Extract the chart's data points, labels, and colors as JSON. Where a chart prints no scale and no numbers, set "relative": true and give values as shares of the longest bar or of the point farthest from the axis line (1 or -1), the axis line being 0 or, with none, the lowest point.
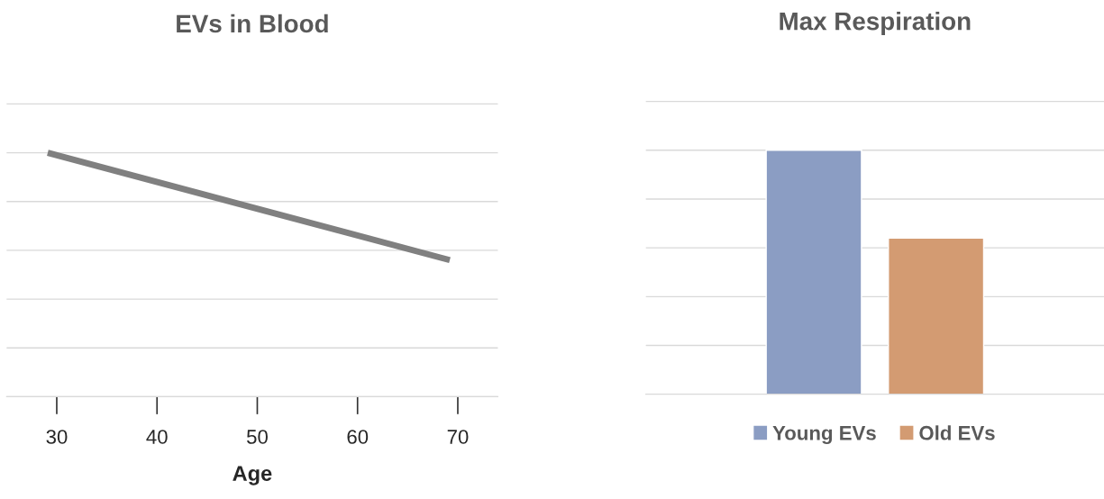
{
  "chart_data": [
    {
      "type": "line",
      "title": "EVs in Blood",
      "xlabel": "Age",
      "relative": true,
      "grid": "y",
      "legend": false,
      "marker": "none",
      "line_style": "solid",
      "xlim": [
        25,
        74
      ],
      "xticks": [
        30,
        40,
        50,
        60,
        70
      ],
      "series": [
        {
          "color": "#808080",
          "x": [
            29.1,
            69.2
          ],
          "values": [
            1,
            0.56
          ]
        }
      ]
    },
    {
      "type": "bar",
      "title": "Max Respiration",
      "relative": true,
      "grid": "y",
      "legend": "bottom",
      "categories": [
        null
      ],
      "series": [
        {
          "name": "Young EVs",
          "color": "#8b9dc3",
          "values": [
            1
          ]
        },
        {
          "name": "Old EVs",
          "color": "#d39b72",
          "values": [
            0.64
          ]
        }
      ]
    }
  ]
}
